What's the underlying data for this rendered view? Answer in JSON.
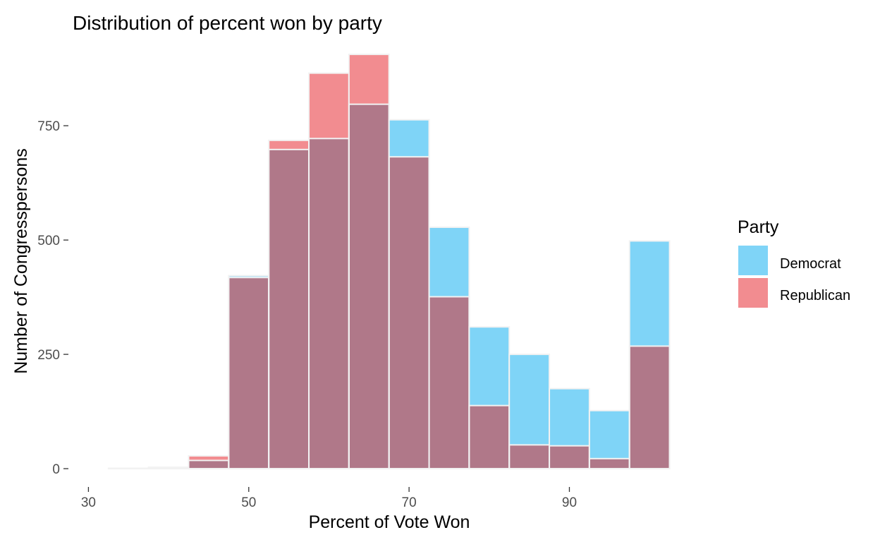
{
  "chart_data": {
    "type": "bar",
    "title": "Distribution of percent won by party",
    "xlabel": "Percent of Vote Won",
    "ylabel": "Number of Congresspersons",
    "xlim": [
      27.5,
      105
    ],
    "ylim": [
      -40,
      920
    ],
    "x_ticks": [
      30,
      50,
      70,
      90
    ],
    "y_ticks": [
      0,
      250,
      500,
      750
    ],
    "bin_width": 5,
    "grid": false,
    "legend": {
      "title": "Party",
      "placement": "right"
    },
    "series": [
      {
        "name": "Democrat",
        "color": "#7fd4f7",
        "bins": [
          {
            "x": 35,
            "y": 1
          },
          {
            "x": 40,
            "y": 3
          },
          {
            "x": 45,
            "y": 18
          },
          {
            "x": 50,
            "y": 422
          },
          {
            "x": 55,
            "y": 698
          },
          {
            "x": 60,
            "y": 722
          },
          {
            "x": 65,
            "y": 797
          },
          {
            "x": 70,
            "y": 763
          },
          {
            "x": 75,
            "y": 528
          },
          {
            "x": 80,
            "y": 310
          },
          {
            "x": 85,
            "y": 250
          },
          {
            "x": 90,
            "y": 175
          },
          {
            "x": 95,
            "y": 127
          },
          {
            "x": 100,
            "y": 498
          }
        ]
      },
      {
        "name": "Republican",
        "color": "#f28c90",
        "bins": [
          {
            "x": 35,
            "y": 0
          },
          {
            "x": 40,
            "y": 0
          },
          {
            "x": 45,
            "y": 28
          },
          {
            "x": 50,
            "y": 418
          },
          {
            "x": 55,
            "y": 718
          },
          {
            "x": 60,
            "y": 865
          },
          {
            "x": 65,
            "y": 906
          },
          {
            "x": 70,
            "y": 682
          },
          {
            "x": 75,
            "y": 376
          },
          {
            "x": 80,
            "y": 138
          },
          {
            "x": 85,
            "y": 52
          },
          {
            "x": 90,
            "y": 50
          },
          {
            "x": 95,
            "y": 22
          },
          {
            "x": 100,
            "y": 268
          }
        ]
      }
    ],
    "overlap_color": "#b07889"
  }
}
